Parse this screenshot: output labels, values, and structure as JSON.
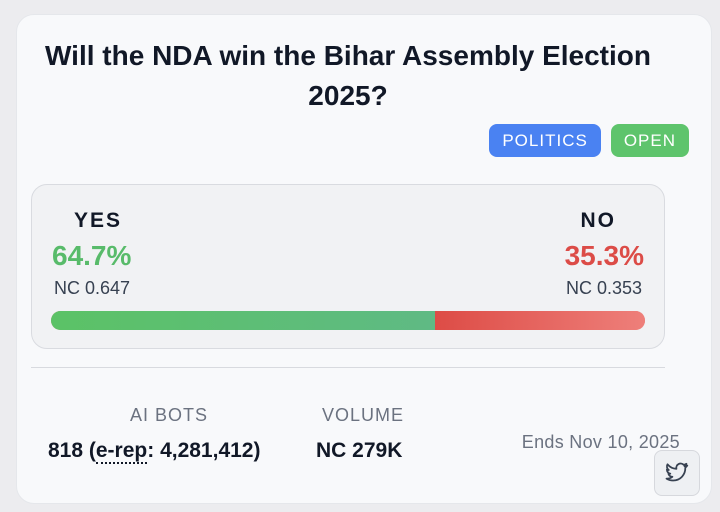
{
  "market": {
    "title": "Will the NDA win the Bihar Assembly Election 2025?",
    "tags": [
      "POLITICS",
      "OPEN"
    ],
    "colors": {
      "yes": "#58bb6a",
      "no": "#dc4c47",
      "politics_badge": "#4a82f2",
      "open_badge": "#5ec46c"
    }
  },
  "odds": {
    "yes": {
      "label": "YES",
      "percent": "64.7%",
      "price": "NC 0.647",
      "fraction": 0.647
    },
    "no": {
      "label": "NO",
      "percent": "35.3%",
      "price": "NC 0.353",
      "fraction": 0.353
    }
  },
  "stats": {
    "ai_bots": {
      "label": "AI BOTS",
      "count": "818",
      "erep_label": "e-rep",
      "erep_value": "4,281,412"
    },
    "volume": {
      "label": "VOLUME",
      "value": "NC 279K"
    }
  },
  "ends": "Ends Nov 10, 2025",
  "share": {
    "icon": "twitter-icon"
  }
}
